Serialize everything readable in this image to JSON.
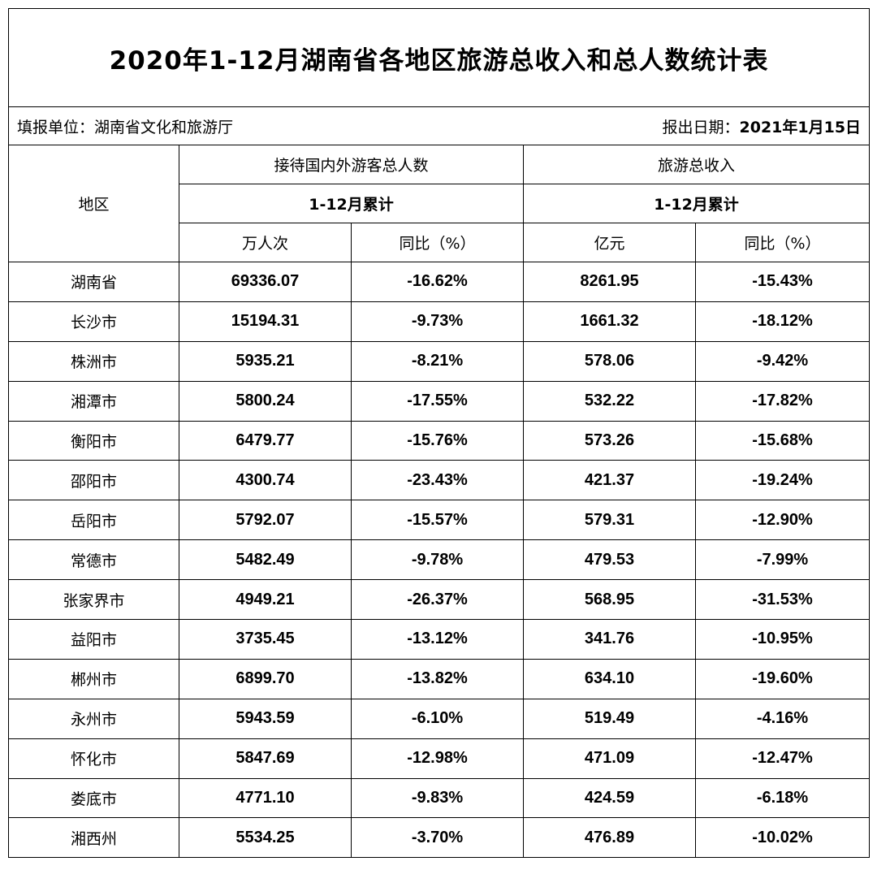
{
  "title": "2020年1-12月湖南省各地区旅游总收入和总人数统计表",
  "meta": {
    "unit_label": "填报单位：湖南省文化和旅游厅",
    "date_label": "报出日期：",
    "date_value": "2021年1月15日"
  },
  "header": {
    "region": "地区",
    "visitors_group": "接待国内外游客总人数",
    "revenue_group": "旅游总收入",
    "period": "1-12月累计",
    "visitors_unit": "万人次",
    "revenue_unit": "亿元",
    "yoy": "同比（%）"
  },
  "rows": [
    {
      "region": "湖南省",
      "visitors": "69336.07",
      "visitors_yoy": "-16.62%",
      "revenue": "8261.95",
      "revenue_yoy": "-15.43%"
    },
    {
      "region": "长沙市",
      "visitors": "15194.31",
      "visitors_yoy": "-9.73%",
      "revenue": "1661.32",
      "revenue_yoy": "-18.12%"
    },
    {
      "region": "株洲市",
      "visitors": "5935.21",
      "visitors_yoy": "-8.21%",
      "revenue": "578.06",
      "revenue_yoy": "-9.42%"
    },
    {
      "region": "湘潭市",
      "visitors": "5800.24",
      "visitors_yoy": "-17.55%",
      "revenue": "532.22",
      "revenue_yoy": "-17.82%"
    },
    {
      "region": "衡阳市",
      "visitors": "6479.77",
      "visitors_yoy": "-15.76%",
      "revenue": "573.26",
      "revenue_yoy": "-15.68%"
    },
    {
      "region": "邵阳市",
      "visitors": "4300.74",
      "visitors_yoy": "-23.43%",
      "revenue": "421.37",
      "revenue_yoy": "-19.24%"
    },
    {
      "region": "岳阳市",
      "visitors": "5792.07",
      "visitors_yoy": "-15.57%",
      "revenue": "579.31",
      "revenue_yoy": "-12.90%"
    },
    {
      "region": "常德市",
      "visitors": "5482.49",
      "visitors_yoy": "-9.78%",
      "revenue": "479.53",
      "revenue_yoy": "-7.99%"
    },
    {
      "region": "张家界市",
      "visitors": "4949.21",
      "visitors_yoy": "-26.37%",
      "revenue": "568.95",
      "revenue_yoy": "-31.53%"
    },
    {
      "region": "益阳市",
      "visitors": "3735.45",
      "visitors_yoy": "-13.12%",
      "revenue": "341.76",
      "revenue_yoy": "-10.95%"
    },
    {
      "region": "郴州市",
      "visitors": "6899.70",
      "visitors_yoy": "-13.82%",
      "revenue": "634.10",
      "revenue_yoy": "-19.60%"
    },
    {
      "region": "永州市",
      "visitors": "5943.59",
      "visitors_yoy": "-6.10%",
      "revenue": "519.49",
      "revenue_yoy": "-4.16%"
    },
    {
      "region": "怀化市",
      "visitors": "5847.69",
      "visitors_yoy": "-12.98%",
      "revenue": "471.09",
      "revenue_yoy": "-12.47%"
    },
    {
      "region": "娄底市",
      "visitors": "4771.10",
      "visitors_yoy": "-9.83%",
      "revenue": "424.59",
      "revenue_yoy": "-6.18%"
    },
    {
      "region": "湘西州",
      "visitors": "5534.25",
      "visitors_yoy": "-3.70%",
      "revenue": "476.89",
      "revenue_yoy": "-10.02%"
    }
  ]
}
